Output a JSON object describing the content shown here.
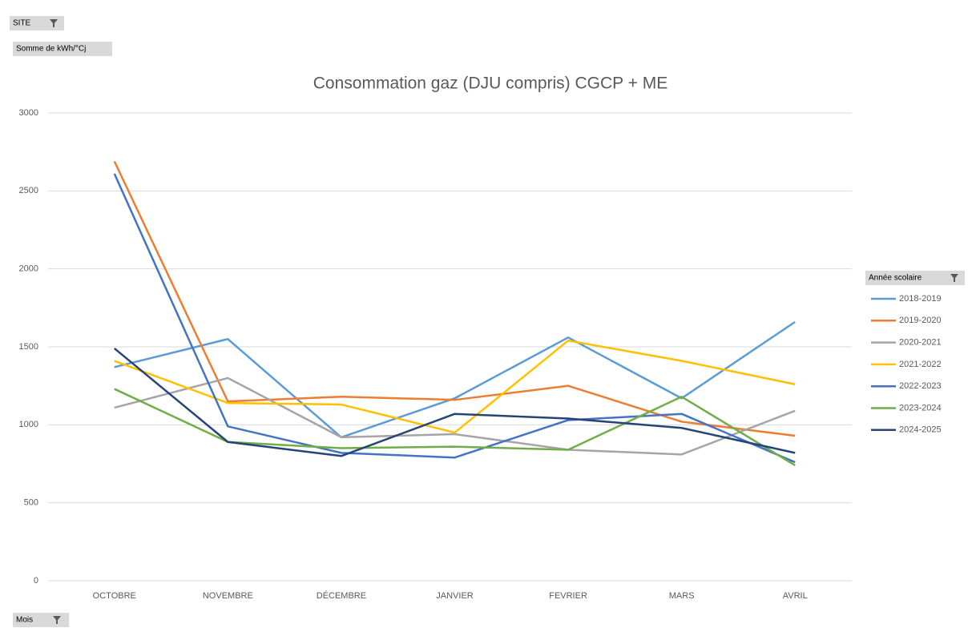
{
  "pivot_fields": {
    "report_filter": "SITE",
    "values_field": "Somme de kWh/°Cj",
    "legend_field": "Année scolaire",
    "axis_field": "Mois"
  },
  "chart_data": {
    "type": "line",
    "title": "Consommation gaz (DJU compris) CGCP + ME",
    "categories": [
      "OCTOBRE",
      "NOVEMBRE",
      "DÉCEMBRE",
      "JANVIER",
      "FEVRIER",
      "MARS",
      "AVRIL"
    ],
    "ylim": [
      0,
      3000
    ],
    "yticks": [
      0,
      500,
      1000,
      1500,
      2000,
      2500,
      3000
    ],
    "grid": true,
    "legend": "right",
    "series": [
      {
        "name": "2018-2019",
        "color": "#5b9bd5",
        "values": [
          1370,
          1550,
          920,
          1170,
          1560,
          1170,
          1660
        ]
      },
      {
        "name": "2019-2020",
        "color": "#ed7d31",
        "values": [
          2690,
          1150,
          1180,
          1160,
          1250,
          1020,
          930
        ]
      },
      {
        "name": "2020-2021",
        "color": "#a5a5a5",
        "values": [
          1110,
          1300,
          920,
          940,
          840,
          810,
          1090
        ]
      },
      {
        "name": "2021-2022",
        "color": "#ffc000",
        "values": [
          1410,
          1140,
          1130,
          950,
          1540,
          1410,
          1260
        ]
      },
      {
        "name": "2022-2023",
        "color": "#4472c4",
        "values": [
          2610,
          990,
          820,
          790,
          1030,
          1070,
          760
        ]
      },
      {
        "name": "2023-2024",
        "color": "#70ad47",
        "values": [
          1230,
          890,
          850,
          860,
          840,
          1180,
          740
        ]
      },
      {
        "name": "2024-2025",
        "color": "#264478",
        "values": [
          1490,
          890,
          800,
          1070,
          1040,
          980,
          820
        ]
      }
    ]
  }
}
